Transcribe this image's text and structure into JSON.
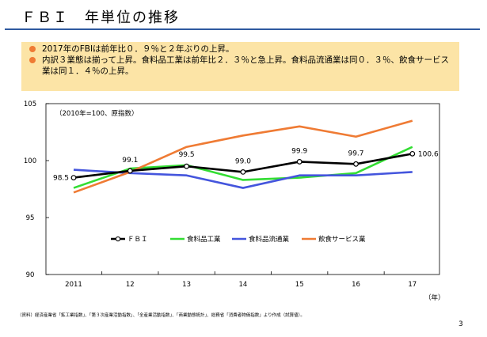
{
  "slide": {
    "title": "ＦＢＩ　年単位の推移",
    "bullets": [
      "2017年のFBIは前年比０．９％と２年ぶりの上昇。",
      "内訳３業態は揃って上昇。食料品工業は前年比２．３％と急上昇。食料品流通業は同０．３％、飲食サービス業は同１．４％の上昇。"
    ],
    "source": "（資料）経済産業省「鉱工業指数」、「第３次産業活動指数」、「全産業活動指数」、「商業動態統計」、総務省「消費者物価指数」より作成（試算値）。",
    "page_number": "3"
  },
  "colors": {
    "title_rule": "#2e5aa0",
    "summary_bg": "#fce4a6",
    "bullet": "#ef7b34"
  },
  "chart_data": {
    "type": "line",
    "annotation": "（2010年=100、原指数）",
    "categories": [
      "2011",
      "12",
      "13",
      "14",
      "15",
      "16",
      "17"
    ],
    "x_unit_label": "（年）",
    "ylim": [
      90,
      105
    ],
    "yticks": [
      90,
      95,
      100,
      105
    ],
    "grid": false,
    "legend_position": "bottom-center",
    "series": [
      {
        "name": "ＦＢＩ",
        "color": "#000000",
        "markers": true,
        "values": [
          98.5,
          99.1,
          99.5,
          99.0,
          99.9,
          99.7,
          100.6
        ],
        "labels": [
          "98.5",
          "99.1",
          "99.5",
          "99.0",
          "99.9",
          "99.7",
          "100.6"
        ]
      },
      {
        "name": "食料品工業",
        "color": "#33dd33",
        "markers": false,
        "values": [
          97.6,
          99.3,
          99.6,
          98.3,
          98.5,
          98.9,
          101.2
        ]
      },
      {
        "name": "食料品流通業",
        "color": "#4455dd",
        "markers": false,
        "values": [
          99.2,
          98.9,
          98.7,
          97.6,
          98.7,
          98.7,
          99.0
        ]
      },
      {
        "name": "飲食サービス業",
        "color": "#ef7b34",
        "markers": false,
        "values": [
          97.2,
          99.0,
          101.2,
          102.2,
          103.0,
          102.1,
          103.5
        ]
      }
    ]
  }
}
